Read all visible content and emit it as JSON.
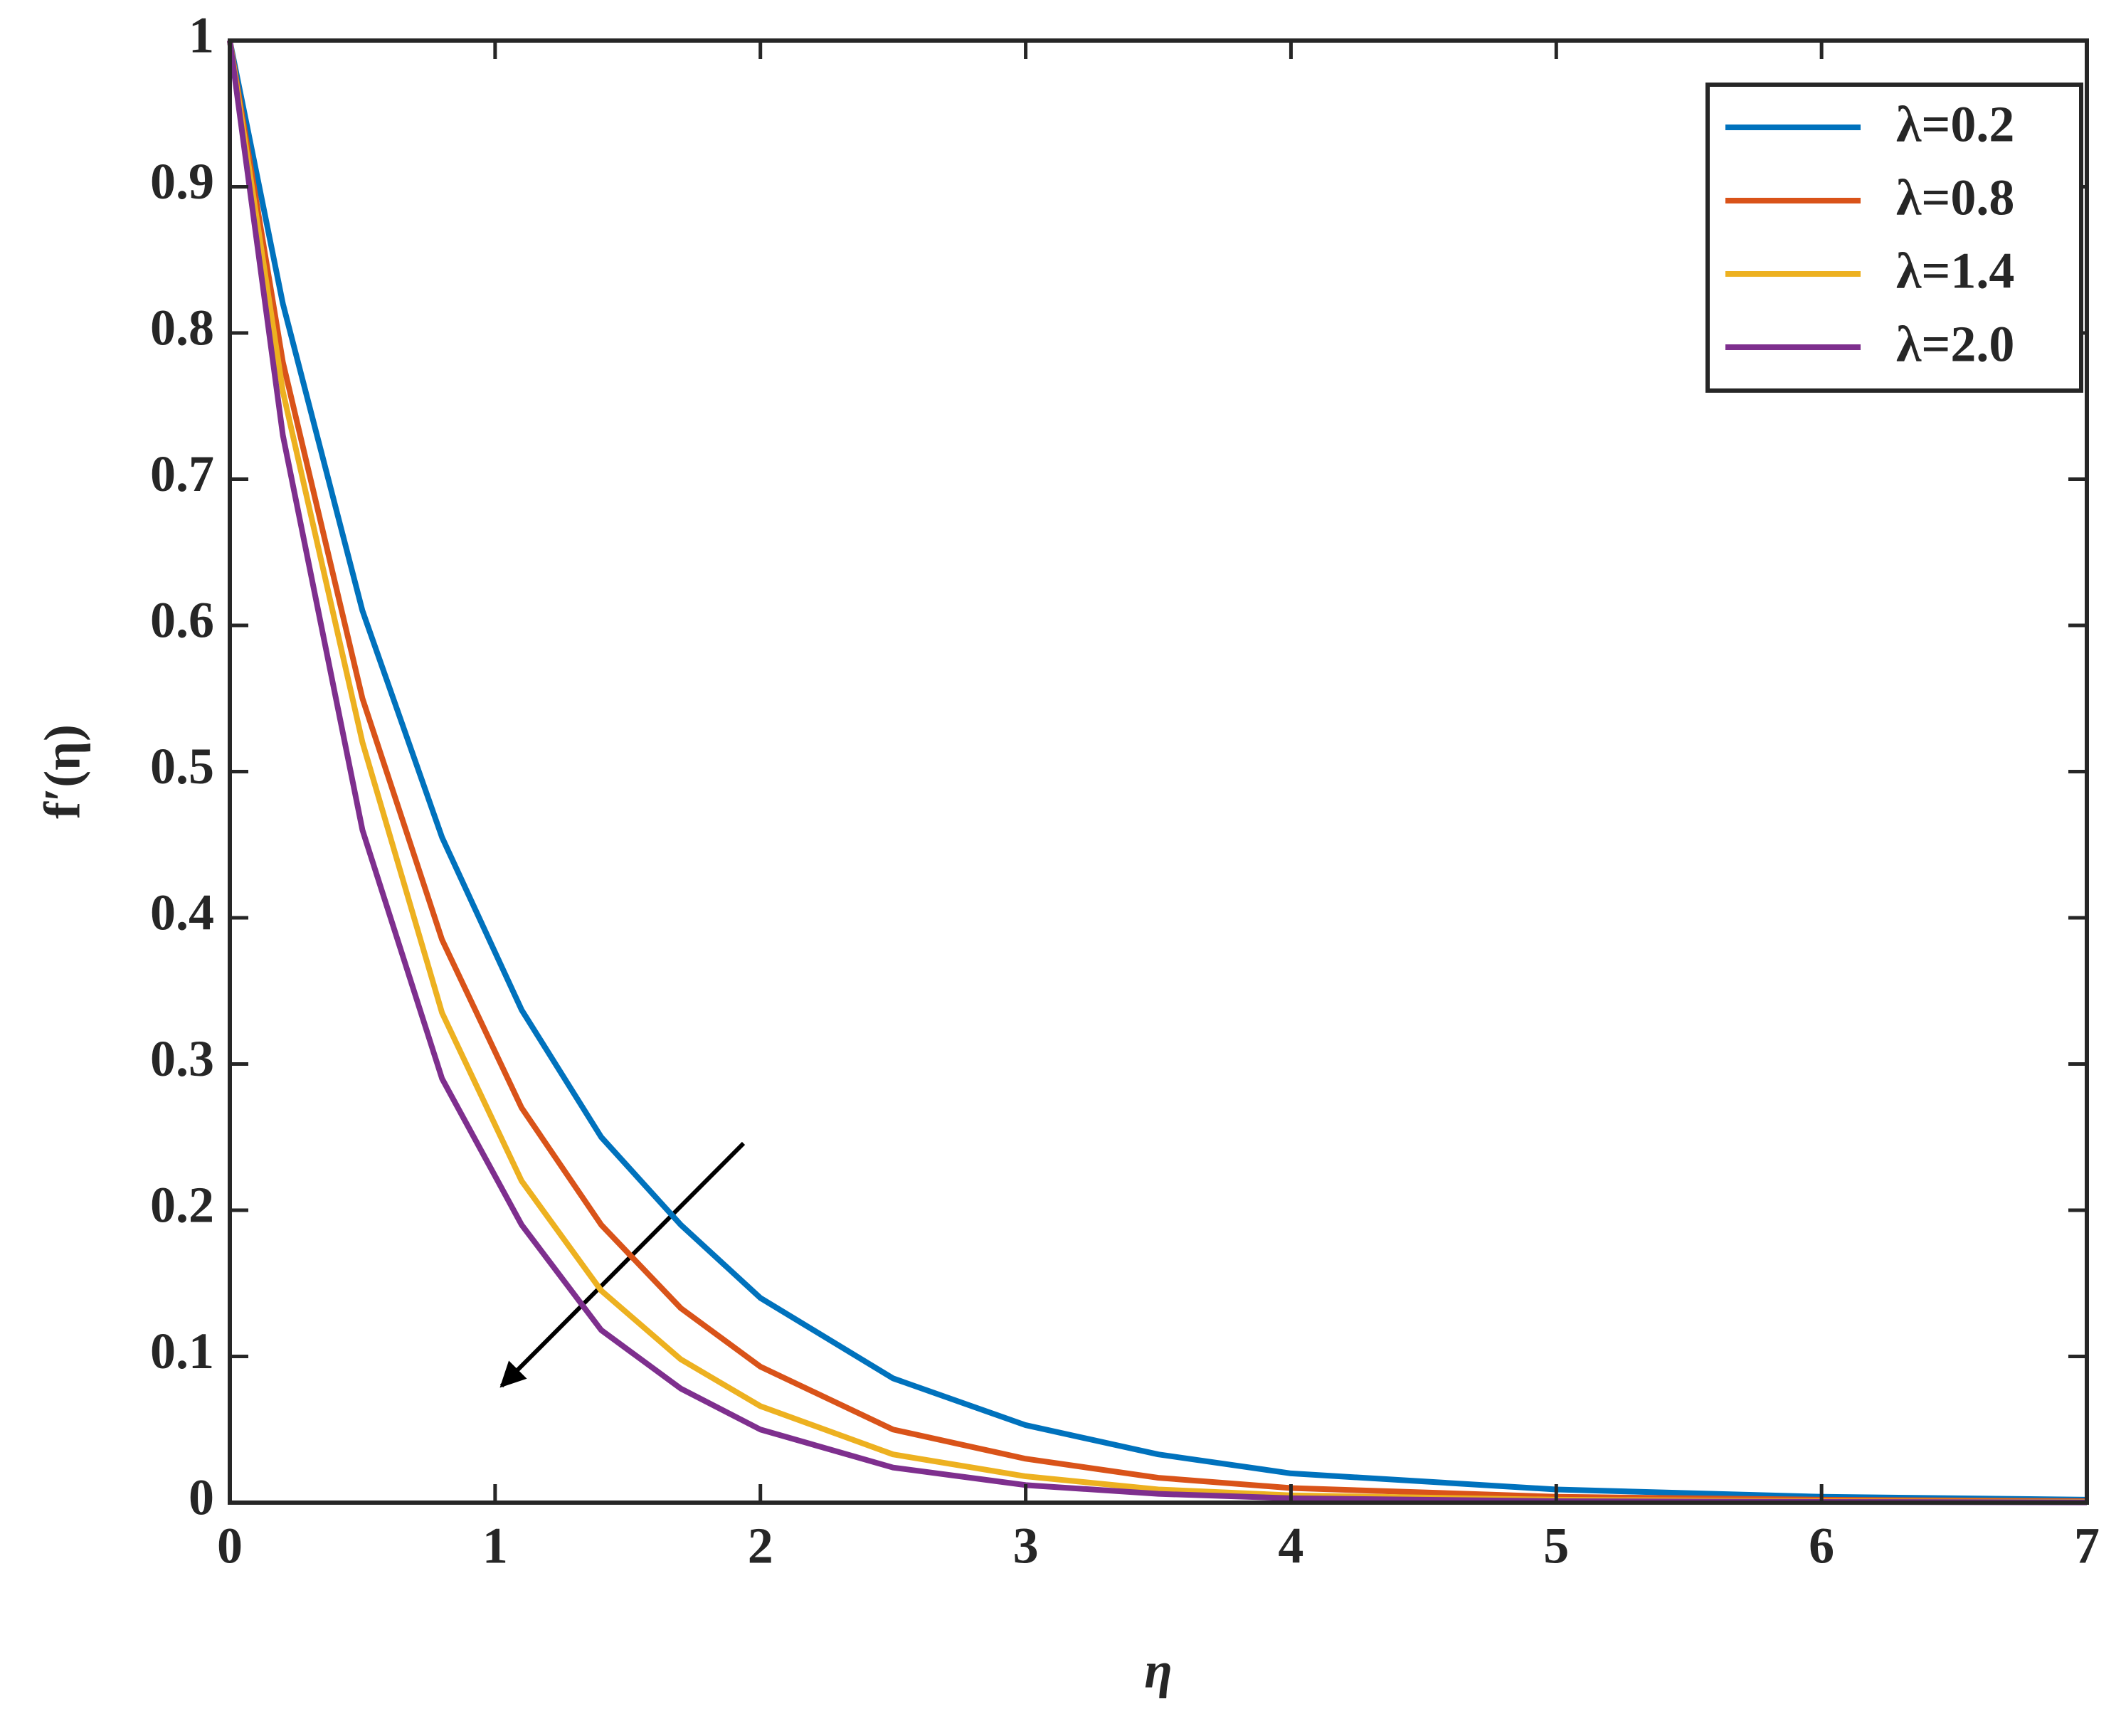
{
  "chart_data": {
    "type": "line",
    "x_label": "η",
    "y_label": "f′(η)",
    "x": [
      0,
      0.2,
      0.5,
      0.8,
      1.1,
      1.4,
      1.7,
      2,
      2.5,
      3,
      3.5,
      4,
      5,
      6,
      7
    ],
    "series": [
      {
        "name": "λ=0.2",
        "color": "#0072bd",
        "values": [
          1,
          0.82,
          0.61,
          0.455,
          0.337,
          0.25,
          0.19,
          0.14,
          0.085,
          0.053,
          0.033,
          0.02,
          0.009,
          0.004,
          0.002
        ]
      },
      {
        "name": "λ=0.8",
        "color": "#d95319",
        "values": [
          1,
          0.78,
          0.55,
          0.385,
          0.27,
          0.19,
          0.133,
          0.093,
          0.05,
          0.03,
          0.017,
          0.01,
          0.004,
          0.002,
          0.001
        ]
      },
      {
        "name": "λ=1.4",
        "color": "#edb120",
        "values": [
          1,
          0.76,
          0.52,
          0.335,
          0.22,
          0.145,
          0.098,
          0.066,
          0.033,
          0.018,
          0.009,
          0.005,
          0.002,
          0.001,
          0.0005
        ]
      },
      {
        "name": "λ=2.0",
        "color": "#7e2f8e",
        "values": [
          1,
          0.73,
          0.46,
          0.29,
          0.19,
          0.118,
          0.078,
          0.05,
          0.024,
          0.012,
          0.006,
          0.003,
          0.001,
          0.0005,
          0.0002
        ]
      }
    ],
    "xlim": [
      0,
      7
    ],
    "xticks": [
      0,
      1,
      2,
      3,
      4,
      5,
      6,
      7
    ],
    "ylim": [
      0,
      1
    ],
    "yticks": [
      0,
      0.1,
      0.2,
      0.3,
      0.4,
      0.5,
      0.6,
      0.7,
      0.8,
      0.9,
      1
    ],
    "legend": "top-right",
    "grid": false
  }
}
